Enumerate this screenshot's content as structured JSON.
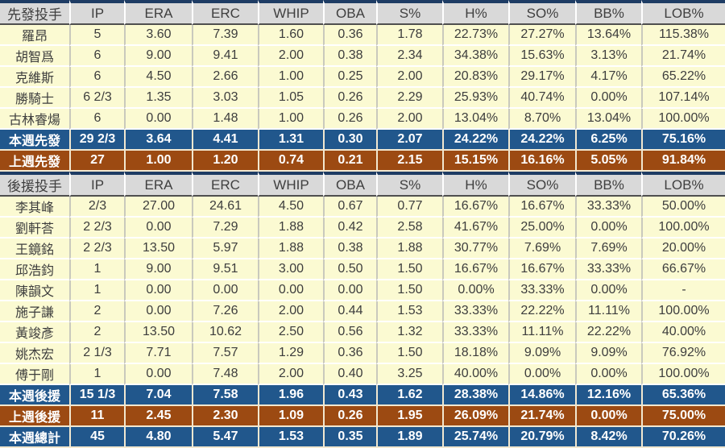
{
  "colors": {
    "header_bg": "#d9d9d9",
    "header_text": "#3f3f3f",
    "data_row_bg": "#fbfad2",
    "data_text": "#3d3d3d",
    "summary_blue_bg": "#21578c",
    "summary_brown_bg": "#9c4a12",
    "summary_text": "#ffffff",
    "header_top_border": "#1e3c64",
    "header_bottom_border": "#4f4f4f"
  },
  "chart_data": {
    "type": "table",
    "stat_columns": [
      "IP",
      "ERA",
      "ERC",
      "WHIP",
      "OBA",
      "S%",
      "H%",
      "SO%",
      "BB%",
      "LOB%"
    ],
    "sections": [
      {
        "header": "先發投手",
        "rows": [
          {
            "label": "羅昂",
            "type": "player",
            "values": [
              "5",
              "3.60",
              "7.39",
              "1.60",
              "0.36",
              "1.78",
              "22.73%",
              "27.27%",
              "13.64%",
              "115.38%"
            ]
          },
          {
            "label": "胡智爲",
            "type": "player",
            "values": [
              "6",
              "9.00",
              "9.41",
              "2.00",
              "0.38",
              "2.34",
              "34.38%",
              "15.63%",
              "3.13%",
              "21.74%"
            ]
          },
          {
            "label": "克維斯",
            "type": "player",
            "values": [
              "6",
              "4.50",
              "2.66",
              "1.00",
              "0.25",
              "2.00",
              "20.83%",
              "29.17%",
              "4.17%",
              "65.22%"
            ]
          },
          {
            "label": "勝騎士",
            "type": "player",
            "values": [
              "6 2/3",
              "1.35",
              "3.03",
              "1.05",
              "0.26",
              "2.29",
              "25.93%",
              "40.74%",
              "0.00%",
              "107.14%"
            ]
          },
          {
            "label": "古林睿煬",
            "type": "player",
            "values": [
              "6",
              "0.00",
              "1.48",
              "1.00",
              "0.26",
              "2.00",
              "13.04%",
              "8.70%",
              "13.04%",
              "100.00%"
            ]
          },
          {
            "label": "本週先發",
            "type": "summary-blue",
            "values": [
              "29 2/3",
              "3.64",
              "4.41",
              "1.31",
              "0.30",
              "2.07",
              "24.22%",
              "24.22%",
              "6.25%",
              "75.16%"
            ]
          },
          {
            "label": "上週先發",
            "type": "summary-brown",
            "values": [
              "27",
              "1.00",
              "1.20",
              "0.74",
              "0.21",
              "2.15",
              "15.15%",
              "16.16%",
              "5.05%",
              "91.84%"
            ]
          }
        ]
      },
      {
        "header": "後援投手",
        "rows": [
          {
            "label": "李其峰",
            "type": "player",
            "values": [
              "2/3",
              "27.00",
              "24.61",
              "4.50",
              "0.67",
              "0.77",
              "16.67%",
              "16.67%",
              "33.33%",
              "50.00%"
            ]
          },
          {
            "label": "劉軒荅",
            "type": "player",
            "values": [
              "2 2/3",
              "0.00",
              "7.29",
              "1.88",
              "0.42",
              "2.58",
              "41.67%",
              "25.00%",
              "0.00%",
              "100.00%"
            ]
          },
          {
            "label": "王鏡銘",
            "type": "player",
            "values": [
              "2 2/3",
              "13.50",
              "5.97",
              "1.88",
              "0.38",
              "1.88",
              "30.77%",
              "7.69%",
              "7.69%",
              "20.00%"
            ]
          },
          {
            "label": "邱浩鈞",
            "type": "player",
            "values": [
              "1",
              "9.00",
              "9.51",
              "3.00",
              "0.50",
              "1.50",
              "16.67%",
              "16.67%",
              "33.33%",
              "66.67%"
            ]
          },
          {
            "label": "陳韻文",
            "type": "player",
            "values": [
              "1",
              "0.00",
              "0.00",
              "0.00",
              "0.00",
              "1.50",
              "0.00%",
              "33.33%",
              "0.00%",
              "-"
            ]
          },
          {
            "label": "施子謙",
            "type": "player",
            "values": [
              "2",
              "0.00",
              "7.26",
              "2.00",
              "0.44",
              "1.53",
              "33.33%",
              "22.22%",
              "11.11%",
              "100.00%"
            ]
          },
          {
            "label": "黃竣彥",
            "type": "player",
            "values": [
              "2",
              "13.50",
              "10.62",
              "2.50",
              "0.56",
              "1.32",
              "33.33%",
              "11.11%",
              "22.22%",
              "40.00%"
            ]
          },
          {
            "label": "姚杰宏",
            "type": "player",
            "values": [
              "2 1/3",
              "7.71",
              "7.57",
              "1.29",
              "0.36",
              "1.50",
              "18.18%",
              "9.09%",
              "9.09%",
              "76.92%"
            ]
          },
          {
            "label": "傅于剛",
            "type": "player",
            "values": [
              "1",
              "0.00",
              "7.48",
              "2.00",
              "0.40",
              "3.25",
              "40.00%",
              "0.00%",
              "0.00%",
              "100.00%"
            ]
          },
          {
            "label": "本週後援",
            "type": "summary-blue",
            "values": [
              "15 1/3",
              "7.04",
              "7.58",
              "1.96",
              "0.43",
              "1.62",
              "28.38%",
              "14.86%",
              "12.16%",
              "65.36%"
            ]
          },
          {
            "label": "上週後援",
            "type": "summary-brown",
            "values": [
              "11",
              "2.45",
              "2.30",
              "1.09",
              "0.26",
              "1.95",
              "26.09%",
              "21.74%",
              "0.00%",
              "75.00%"
            ]
          },
          {
            "label": "本週總計",
            "type": "summary-blue",
            "values": [
              "45",
              "4.80",
              "5.47",
              "1.53",
              "0.35",
              "1.89",
              "25.74%",
              "20.79%",
              "8.42%",
              "70.26%"
            ]
          }
        ]
      }
    ]
  }
}
